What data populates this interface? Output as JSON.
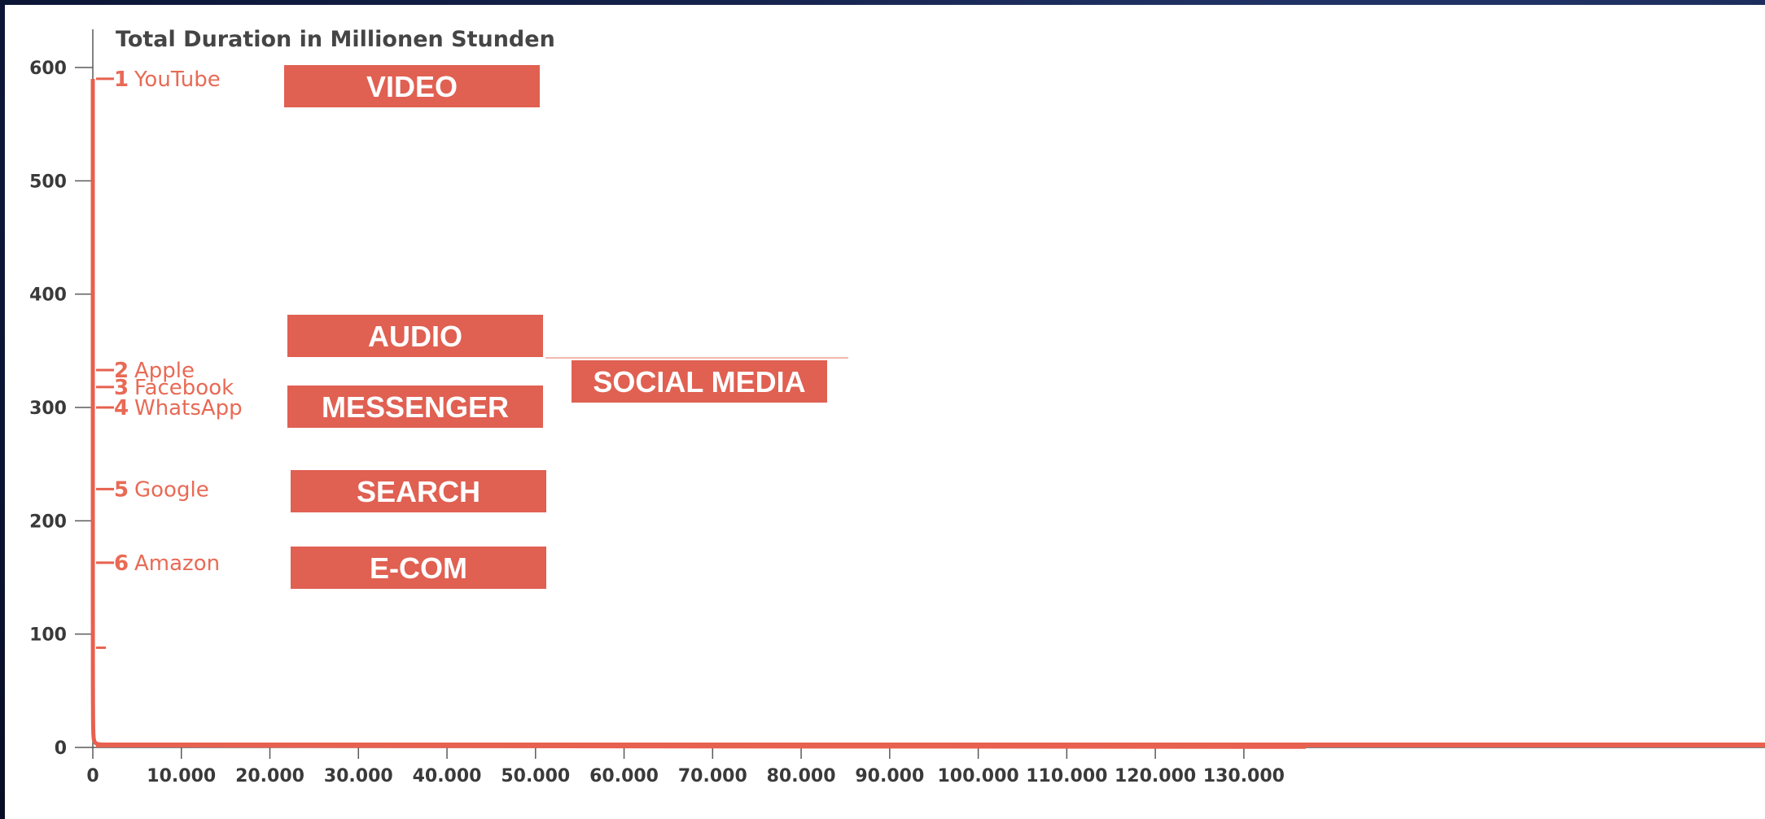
{
  "chart_data": {
    "type": "line",
    "title": "Total Duration in Millionen Stunden",
    "x_axis": {
      "range": [
        0,
        137000
      ],
      "ticks": [
        "0",
        "10.000",
        "20.000",
        "30.000",
        "40.000",
        "50.000",
        "60.000",
        "70.000",
        "80.000",
        "90.000",
        "100.000",
        "110.000",
        "120.000",
        "130.000"
      ]
    },
    "y_axis": {
      "range": [
        0,
        600
      ],
      "ticks": [
        "0",
        "100",
        "200",
        "300",
        "400",
        "500",
        "600"
      ]
    },
    "grid": false,
    "legend": "none",
    "line_color": "#e8604f",
    "series": [
      {
        "x": [
          0,
          1,
          2,
          3,
          4,
          5,
          6,
          8,
          10,
          15,
          20,
          30,
          40,
          60,
          80,
          100,
          150,
          200,
          300,
          500,
          1000,
          5000,
          20000,
          60000,
          137000
        ],
        "y": [
          590,
          330,
          315,
          297,
          228,
          163,
          120,
          88,
          70,
          50,
          38,
          26,
          19,
          13,
          10,
          8,
          6,
          5,
          4,
          3,
          2.5,
          2,
          1.5,
          1,
          0.5
        ]
      }
    ],
    "annotations": [
      {
        "rank": "1",
        "name": "YouTube",
        "y": 590
      },
      {
        "rank": "2",
        "name": "Apple",
        "y": 333
      },
      {
        "rank": "3",
        "name": "Facebook",
        "y": 318
      },
      {
        "rank": "4",
        "name": "WhatsApp",
        "y": 300
      },
      {
        "rank": "5",
        "name": "Google",
        "y": 228
      },
      {
        "rank": "6",
        "name": "Amazon",
        "y": 163
      }
    ],
    "categories": [
      "VIDEO",
      "AUDIO",
      "SOCIAL MEDIA",
      "MESSENGER",
      "SEARCH",
      "E-COM"
    ],
    "category_color": "#e06052"
  }
}
